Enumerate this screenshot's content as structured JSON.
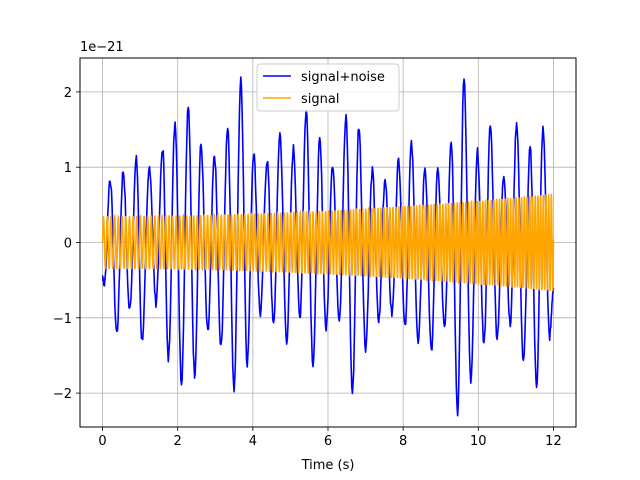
{
  "chart_data": {
    "type": "line",
    "title": "",
    "xlabel": "Time (s)",
    "ylabel": "",
    "offset_text": "1e−21",
    "xlim": [
      -0.6,
      12.6
    ],
    "ylim": [
      -2.45,
      2.45
    ],
    "xticks": [
      0,
      2,
      4,
      6,
      8,
      10,
      12
    ],
    "xtick_labels": [
      "0",
      "2",
      "4",
      "6",
      "8",
      "10",
      "12"
    ],
    "yticks": [
      -2,
      -1,
      0,
      1,
      2
    ],
    "ytick_labels": [
      "−2",
      "−1",
      "0",
      "1",
      "2"
    ],
    "grid": true,
    "legend_position": "top-center",
    "series": [
      {
        "name": "signal+noise",
        "color": "#0000ff",
        "peak_times": [
          0.05,
          0.2,
          0.38,
          0.55,
          0.72,
          0.9,
          1.05,
          1.25,
          1.42,
          1.6,
          1.75,
          1.93,
          2.1,
          2.28,
          2.45,
          2.62,
          2.8,
          2.98,
          3.15,
          3.33,
          3.5,
          3.68,
          3.85,
          4.02,
          4.2,
          4.38,
          4.55,
          4.72,
          4.9,
          5.08,
          5.25,
          5.42,
          5.6,
          5.78,
          5.95,
          6.12,
          6.3,
          6.48,
          6.65,
          6.82,
          7.0,
          7.18,
          7.35,
          7.52,
          7.7,
          7.88,
          8.05,
          8.22,
          8.4,
          8.58,
          8.75,
          8.92,
          9.1,
          9.28,
          9.45,
          9.62,
          9.8,
          9.98,
          10.15,
          10.32,
          10.5,
          10.68,
          10.85,
          11.02,
          11.2,
          11.38,
          11.55,
          11.72,
          11.9
        ],
        "peak_values": [
          -0.55,
          0.85,
          -1.2,
          0.95,
          -0.9,
          1.1,
          -1.3,
          1.0,
          -0.8,
          1.25,
          -1.55,
          1.6,
          -1.85,
          1.8,
          -1.75,
          1.3,
          -1.2,
          1.15,
          -1.4,
          1.55,
          -1.95,
          2.15,
          -1.6,
          1.2,
          -0.95,
          1.1,
          -1.1,
          1.45,
          -1.3,
          1.25,
          -1.0,
          1.75,
          -1.6,
          1.35,
          -1.15,
          1.05,
          -1.0,
          1.65,
          -2.0,
          1.55,
          -1.4,
          0.95,
          -1.05,
          0.85,
          -0.95,
          1.1,
          -1.1,
          1.3,
          -1.35,
          1.0,
          -1.45,
          0.95,
          -1.1,
          1.35,
          -2.25,
          2.2,
          -1.85,
          1.2,
          -1.35,
          1.55,
          -1.25,
          0.9,
          -1.1,
          1.6,
          -1.6,
          1.25,
          -1.9,
          1.5,
          -1.25
        ]
      },
      {
        "name": "signal",
        "color": "#ffa500",
        "t_start": 0,
        "t_end": 12,
        "amplitude_start": 0.35,
        "amplitude_end": 0.65,
        "frequency_hz_start": 10,
        "frequency_hz_end": 14
      }
    ]
  }
}
